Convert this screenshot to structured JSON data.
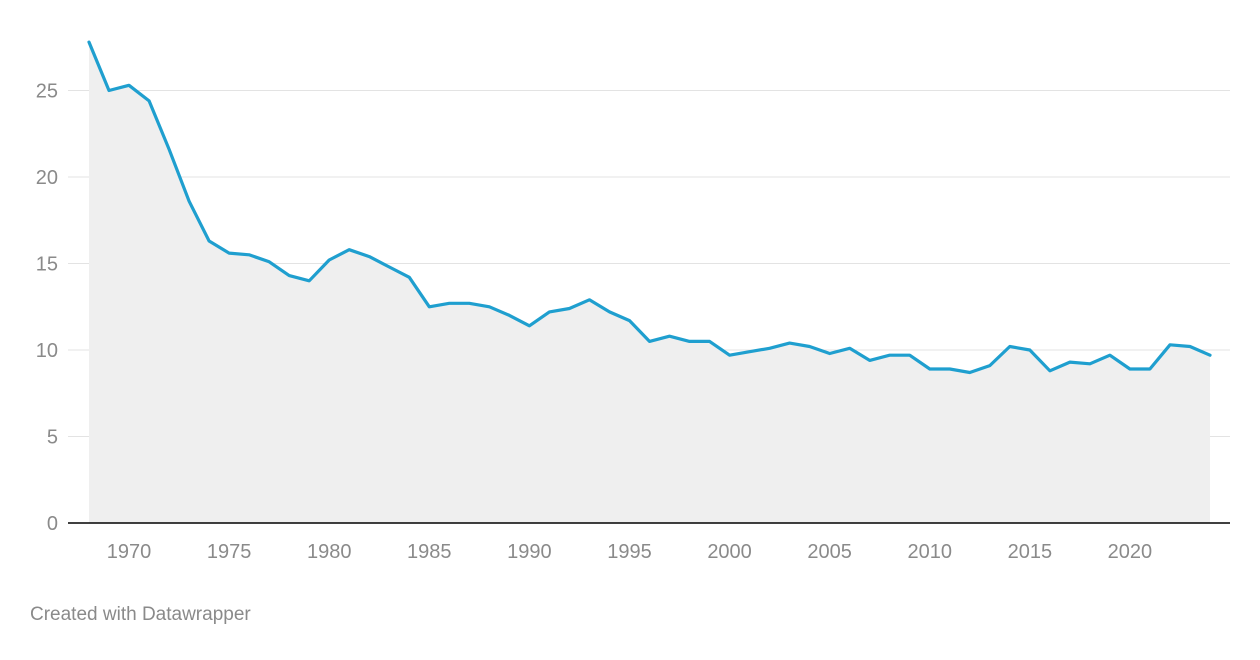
{
  "credit": "Created with Datawrapper",
  "colors": {
    "line": "#1f9fcf",
    "area": "#efefef",
    "grid": "#e3e3e3",
    "baseline": "#000000",
    "tick_text": "#8a8a8a"
  },
  "chart_data": {
    "type": "area",
    "title": "",
    "xlabel": "",
    "ylabel": "",
    "xlim": [
      1968,
      2024
    ],
    "ylim": [
      0,
      28
    ],
    "grid": true,
    "yticks": [
      0,
      5,
      10,
      15,
      20,
      25
    ],
    "xticks": [
      1970,
      1975,
      1980,
      1985,
      1990,
      1995,
      2000,
      2005,
      2010,
      2015,
      2020
    ],
    "x": [
      1968,
      1969,
      1970,
      1971,
      1972,
      1973,
      1974,
      1975,
      1976,
      1977,
      1978,
      1979,
      1980,
      1981,
      1982,
      1983,
      1984,
      1985,
      1986,
      1987,
      1988,
      1989,
      1990,
      1991,
      1992,
      1993,
      1994,
      1995,
      1996,
      1997,
      1998,
      1999,
      2000,
      2001,
      2002,
      2003,
      2004,
      2005,
      2006,
      2007,
      2008,
      2009,
      2010,
      2011,
      2012,
      2013,
      2014,
      2015,
      2016,
      2017,
      2018,
      2019,
      2020,
      2021,
      2022,
      2023,
      2024
    ],
    "series": [
      {
        "values": [
          27.8,
          25.0,
          25.3,
          24.4,
          21.6,
          18.6,
          16.3,
          15.6,
          15.5,
          15.1,
          14.3,
          14.0,
          15.2,
          15.8,
          15.4,
          14.8,
          14.2,
          12.5,
          12.7,
          12.7,
          12.5,
          12.0,
          11.4,
          12.2,
          12.4,
          12.9,
          12.2,
          11.7,
          10.5,
          10.8,
          10.5,
          10.5,
          9.7,
          9.9,
          10.1,
          10.4,
          10.2,
          9.8,
          10.1,
          9.4,
          9.7,
          9.7,
          8.9,
          8.9,
          8.7,
          9.1,
          10.2,
          10.0,
          8.8,
          9.3,
          9.2,
          9.7,
          8.9,
          8.9,
          10.3,
          10.2,
          9.7
        ]
      }
    ]
  }
}
